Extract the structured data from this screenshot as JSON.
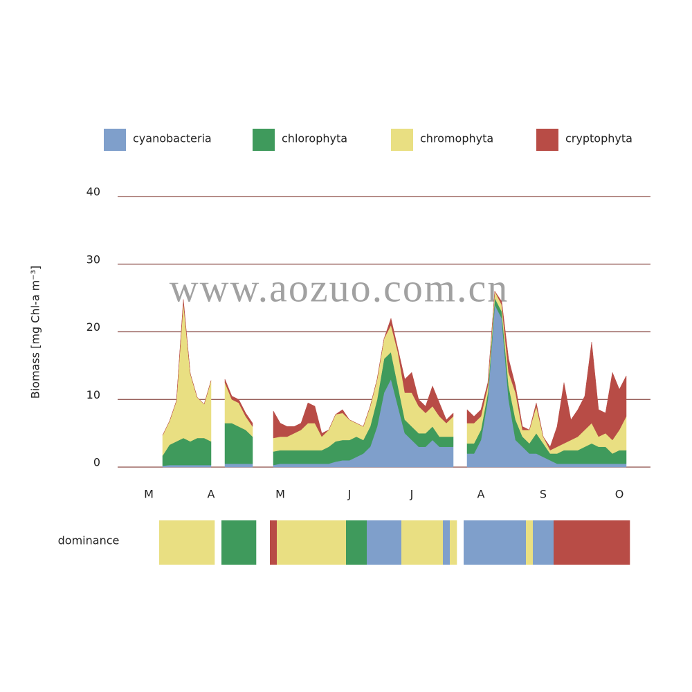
{
  "chart_data": {
    "type": "area",
    "stacked": true,
    "grid": true,
    "watermark": "www.aozuo.com.cn",
    "y_label": "Biomass [mg Chl-a m⁻³]",
    "ylim": [
      0,
      40
    ],
    "yticks": [
      0,
      10,
      20,
      30,
      40
    ],
    "categories": [
      null,
      null,
      null,
      null,
      "M",
      null,
      null,
      null,
      null,
      null,
      null,
      null,
      null,
      "A",
      null,
      null,
      null,
      null,
      null,
      null,
      null,
      null,
      null,
      "M",
      null,
      null,
      null,
      null,
      null,
      null,
      null,
      null,
      null,
      "J",
      null,
      null,
      null,
      null,
      null,
      null,
      null,
      null,
      "J",
      null,
      null,
      null,
      null,
      null,
      null,
      null,
      null,
      null,
      "A",
      null,
      null,
      null,
      null,
      null,
      null,
      null,
      null,
      "S",
      null,
      null,
      null,
      null,
      null,
      null,
      null,
      null,
      null,
      null,
      "O",
      null,
      null,
      null,
      null
    ],
    "series": [
      {
        "name": "cyanobacteria",
        "color": "#7f9fcb",
        "values": [
          null,
          null,
          null,
          null,
          null,
          null,
          0.2,
          0.3,
          0.3,
          0.3,
          0.3,
          0.3,
          0.3,
          0.3,
          null,
          0.5,
          0.5,
          0.5,
          0.5,
          0.5,
          null,
          null,
          0.3,
          0.5,
          0.5,
          0.5,
          0.5,
          0.5,
          0.5,
          0.5,
          0.5,
          0.8,
          1,
          1,
          1.5,
          2,
          3,
          6,
          11,
          13,
          9,
          5,
          4,
          3,
          3,
          4,
          3,
          3,
          3,
          null,
          2,
          2,
          4,
          10,
          24,
          22,
          10,
          4,
          3,
          2,
          2,
          1.5,
          1,
          0.5,
          0.5,
          0.5,
          0.5,
          0.5,
          0.5,
          0.5,
          0.5,
          0.5,
          0.5,
          0.5,
          null,
          null,
          null
        ]
      },
      {
        "name": "chlorophyta",
        "color": "#3f9a5c",
        "values": [
          null,
          null,
          null,
          null,
          null,
          null,
          1.5,
          3,
          3.5,
          4,
          3.5,
          4,
          4,
          3.5,
          null,
          6,
          6,
          5.5,
          5,
          4,
          null,
          null,
          2,
          2,
          2,
          2,
          2,
          2,
          2,
          2,
          2.5,
          3,
          3,
          3,
          3,
          2,
          3,
          4,
          5,
          4,
          3,
          2,
          2,
          2,
          2,
          2,
          1.5,
          1.5,
          1.5,
          null,
          1.5,
          1.5,
          1.5,
          1,
          1,
          1,
          2,
          3,
          1.5,
          1.5,
          3,
          2,
          1,
          1.5,
          2,
          2,
          2,
          2.5,
          3,
          2.5,
          2.5,
          1.5,
          2,
          2,
          null,
          null,
          null
        ]
      },
      {
        "name": "chromophyta",
        "color": "#e9df82",
        "values": [
          null,
          null,
          null,
          null,
          null,
          null,
          3,
          3.5,
          6,
          20,
          10,
          6,
          5,
          9,
          null,
          6,
          3.5,
          3.5,
          2,
          1.5,
          null,
          null,
          2,
          2,
          2,
          2.5,
          3,
          4,
          4,
          2,
          2.5,
          4,
          4,
          3,
          2,
          2,
          3,
          3,
          3,
          4,
          5,
          4,
          5,
          4,
          3,
          3,
          3,
          2,
          3,
          null,
          3,
          3,
          2,
          1,
          1,
          1,
          2,
          4,
          1,
          2,
          4,
          1,
          0.5,
          1,
          1,
          1.5,
          2,
          2.5,
          3,
          1.5,
          2,
          2,
          3,
          5,
          null,
          null,
          null
        ]
      },
      {
        "name": "cryptophyta",
        "color": "#b84c46",
        "values": [
          null,
          null,
          null,
          null,
          null,
          null,
          0,
          0,
          0,
          0.5,
          0,
          0,
          0,
          0,
          null,
          0.5,
          0.5,
          0.5,
          0.5,
          0.5,
          null,
          null,
          4,
          2,
          1.5,
          1,
          1,
          3,
          2.5,
          0.5,
          0,
          0,
          0.5,
          0,
          0,
          0,
          0,
          0,
          0,
          1,
          0.5,
          2,
          3,
          1,
          1,
          3,
          2,
          0.5,
          0.5,
          null,
          2,
          1,
          1,
          0.5,
          0,
          0.5,
          2,
          1,
          0.5,
          0,
          0.5,
          0,
          0.5,
          3,
          9,
          3,
          4,
          5,
          12,
          4,
          3,
          10,
          6,
          6,
          null,
          null,
          null
        ]
      }
    ],
    "dominance_label": "dominance",
    "dominance": [
      null,
      null,
      null,
      null,
      null,
      null,
      2,
      2,
      2,
      2,
      2,
      2,
      2,
      2,
      null,
      1,
      1,
      1,
      1,
      1,
      null,
      null,
      3,
      2,
      2,
      2,
      2,
      2,
      2,
      2,
      2,
      2,
      2,
      1,
      1,
      1,
      0,
      0,
      0,
      0,
      0,
      2,
      2,
      2,
      2,
      2,
      2,
      0,
      2,
      null,
      0,
      0,
      0,
      0,
      0,
      0,
      0,
      0,
      0,
      2,
      0,
      0,
      0,
      3,
      3,
      3,
      3,
      3,
      3,
      3,
      3,
      3,
      3,
      3,
      null,
      null,
      null
    ]
  }
}
